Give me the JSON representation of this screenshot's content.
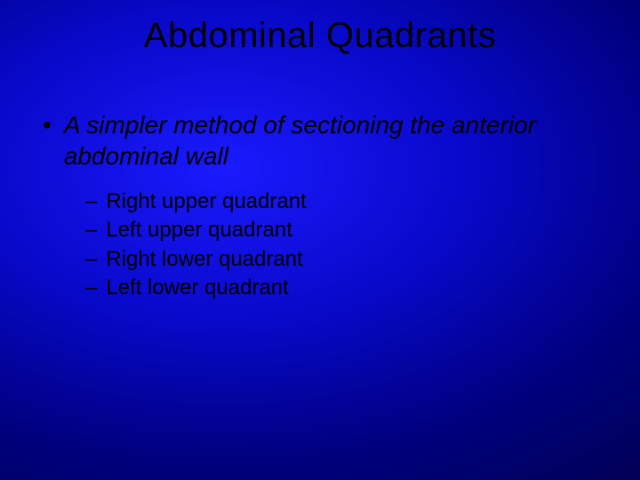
{
  "slide": {
    "title": "Abdominal Quadrants",
    "main_bullet": {
      "marker": "•",
      "text": "A simpler method of sectioning the anterior abdominal wall"
    },
    "sub_bullets": [
      {
        "marker": "–",
        "text": "Right upper quadrant"
      },
      {
        "marker": "–",
        "text": "Left upper quadrant"
      },
      {
        "marker": "–",
        "text": "Right lower quadrant"
      },
      {
        "marker": "–",
        "text": "Left lower quadrant"
      }
    ],
    "style": {
      "background_gradient_inner": "#1a1aff",
      "background_gradient_outer": "#000030",
      "text_color": "#000000",
      "title_fontsize": 40,
      "body_fontsize": 28,
      "sub_fontsize": 24,
      "font_family": "Arial"
    }
  }
}
